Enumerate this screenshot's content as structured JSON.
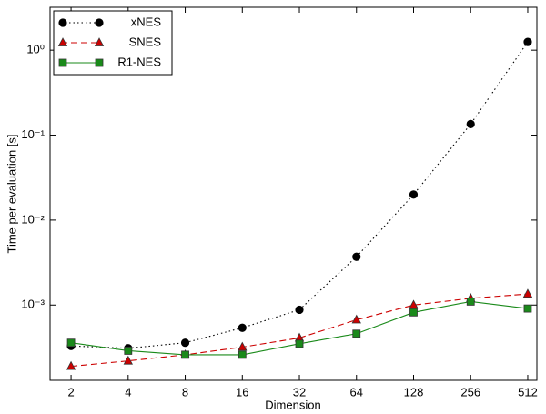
{
  "chart_data": {
    "type": "line",
    "x_scale": "log",
    "y_scale": "log",
    "x_label": "Dimension",
    "y_label": "Time per evaluation [s]",
    "x": [
      2,
      4,
      8,
      16,
      32,
      64,
      128,
      256,
      512
    ],
    "xlim": [
      1.55,
      572
    ],
    "xticks": [
      2,
      4,
      8,
      16,
      32,
      64,
      128,
      256,
      512
    ],
    "ylim": [
      0.00013,
      3.2
    ],
    "yticks": [
      {
        "value": 0.001,
        "label": "10⁻³"
      },
      {
        "value": 0.01,
        "label": "10⁻²"
      },
      {
        "value": 0.1,
        "label": "10⁻¹"
      },
      {
        "value": 1,
        "label": "10⁰"
      }
    ],
    "legend": "upper left",
    "series": [
      {
        "name": "xNES",
        "color": "#000000",
        "marker": "circle",
        "dash": "dotted",
        "values": [
          0.00033,
          0.00031,
          0.00036,
          0.00054,
          0.00088,
          0.0037,
          0.02,
          0.135,
          1.25
        ]
      },
      {
        "name": "SNES",
        "color": "#cc0000",
        "marker": "triangle",
        "dash": "dashed",
        "values": [
          0.00019,
          0.00022,
          0.00026,
          0.00032,
          0.00041,
          0.00067,
          0.001,
          0.0012,
          0.00135
        ]
      },
      {
        "name": "R1-NES",
        "color": "#1a8a1a",
        "marker": "square",
        "dash": "solid",
        "values": [
          0.00036,
          0.00029,
          0.00026,
          0.00026,
          0.00035,
          0.00046,
          0.00082,
          0.0011,
          0.00091
        ]
      }
    ]
  }
}
